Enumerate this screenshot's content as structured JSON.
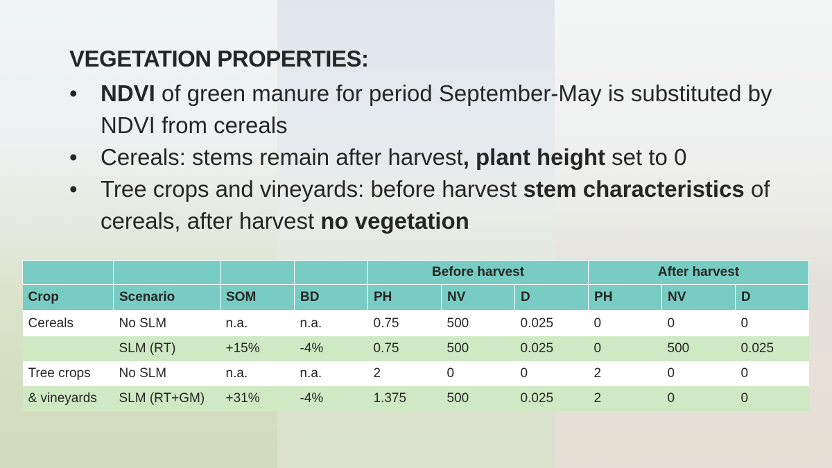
{
  "slide": {
    "title": "VEGETATION PROPERTIES:",
    "bullet_symbol": "•",
    "bullets": [
      {
        "bold": "NDVI",
        "text": " of green manure for period September-May is substituted by NDVI from cereals"
      },
      {
        "pre": "Cereals: stems remain after harvest",
        "bold": ", plant height",
        "post": " set to 0"
      },
      {
        "pre": "Tree crops and vineyards: before harvest ",
        "bold": "stem characteristics",
        "mid": " of cereals, after harvest ",
        "bold2": "no vegetation"
      }
    ]
  },
  "table": {
    "group_headers": {
      "before": "Before harvest",
      "after": "After harvest"
    },
    "columns": [
      "Crop",
      "Scenario",
      "SOM",
      "BD",
      "PH",
      "NV",
      "D",
      "PH",
      "NV",
      "D"
    ],
    "rows": [
      [
        "Cereals",
        "No SLM",
        "n.a.",
        "n.a.",
        "0.75",
        "500",
        "0.025",
        "0",
        "0",
        "0"
      ],
      [
        "",
        "SLM (RT)",
        "+15%",
        "-4%",
        "0.75",
        "500",
        "0.025",
        "0",
        "500",
        "0.025"
      ],
      [
        "Tree crops",
        "No SLM",
        "n.a.",
        "n.a.",
        "2",
        "0",
        "0",
        "2",
        "0",
        "0"
      ],
      [
        "& vineyards",
        "SLM (RT+GM)",
        "+31%",
        "-4%",
        "1.375",
        "500",
        "0.025",
        "2",
        "0",
        "0"
      ]
    ]
  },
  "colors": {
    "header_teal": "#79ccc4",
    "row_green": "#cfe9c4",
    "text": "#262626"
  }
}
